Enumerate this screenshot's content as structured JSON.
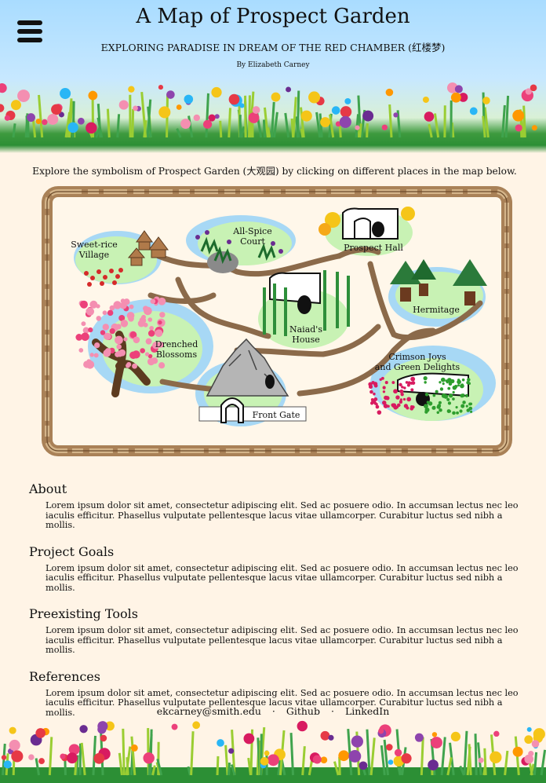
{
  "header": {
    "title": "A Map of Prospect Garden",
    "subtitle": "EXPLORING PARADISE IN DREAM OF THE RED CHAMBER (红楼梦)",
    "byline": "By Elizabeth Carney"
  },
  "intro": "Explore the symbolism of Prospect Garden (大观园) by clicking on different places in the map below.",
  "map": {
    "places": {
      "sweet_rice_1": "Sweet-rice",
      "sweet_rice_2": "Village",
      "all_spice_1": "All-Spice",
      "all_spice_2": "Court",
      "prospect_hall": "Prospect Hall",
      "hermitage": "Hermitage",
      "naiad_1": "Naiad's",
      "naiad_2": "House",
      "drenched_1": "Drenched",
      "drenched_2": "Blossoms",
      "crimson_1": "Crimson Joys",
      "crimson_2": "and Green Delights",
      "front_gate": "Front Gate"
    }
  },
  "sections": [
    {
      "heading": "About",
      "body": "Lorem ipsum dolor sit amet, consectetur adipiscing elit. Sed ac posuere odio. In accumsan lectus nec leo iaculis efficitur. Phasellus vulputate pellentesque lacus vitae ullamcorper. Curabitur luctus sed nibh a mollis."
    },
    {
      "heading": "Project Goals",
      "body": "Lorem ipsum dolor sit amet, consectetur adipiscing elit. Sed ac posuere odio. In accumsan lectus nec leo iaculis efficitur. Phasellus vulputate pellentesque lacus vitae ullamcorper. Curabitur luctus sed nibh a mollis."
    },
    {
      "heading": "Preexisting Tools",
      "body": "Lorem ipsum dolor sit amet, consectetur adipiscing elit. Sed ac posuere odio. In accumsan lectus nec leo iaculis efficitur. Phasellus vulputate pellentesque lacus vitae ullamcorper. Curabitur luctus sed nibh a mollis."
    },
    {
      "heading": "References",
      "body": "Lorem ipsum dolor sit amet, consectetur adipiscing elit. Sed ac posuere odio. In accumsan lectus nec leo iaculis efficitur. Phasellus vulputate pellentesque lacus vitae ullamcorper. Curabitur luctus sed nibh a mollis."
    }
  ],
  "footer": {
    "email": "ekcarney@smith.edu",
    "github": "Github",
    "linkedin": "LinkedIn",
    "separator": "·"
  },
  "icons": {
    "menu": "hamburger-menu-icon"
  },
  "colors": {
    "background": "#fff4e6",
    "sky": "#a9dcff",
    "grass": "#2c8f35",
    "frame": "#b08a5e",
    "path": "#8b6a4a",
    "place_pad": "#c8f2b4",
    "water": "#a7d8f5"
  }
}
